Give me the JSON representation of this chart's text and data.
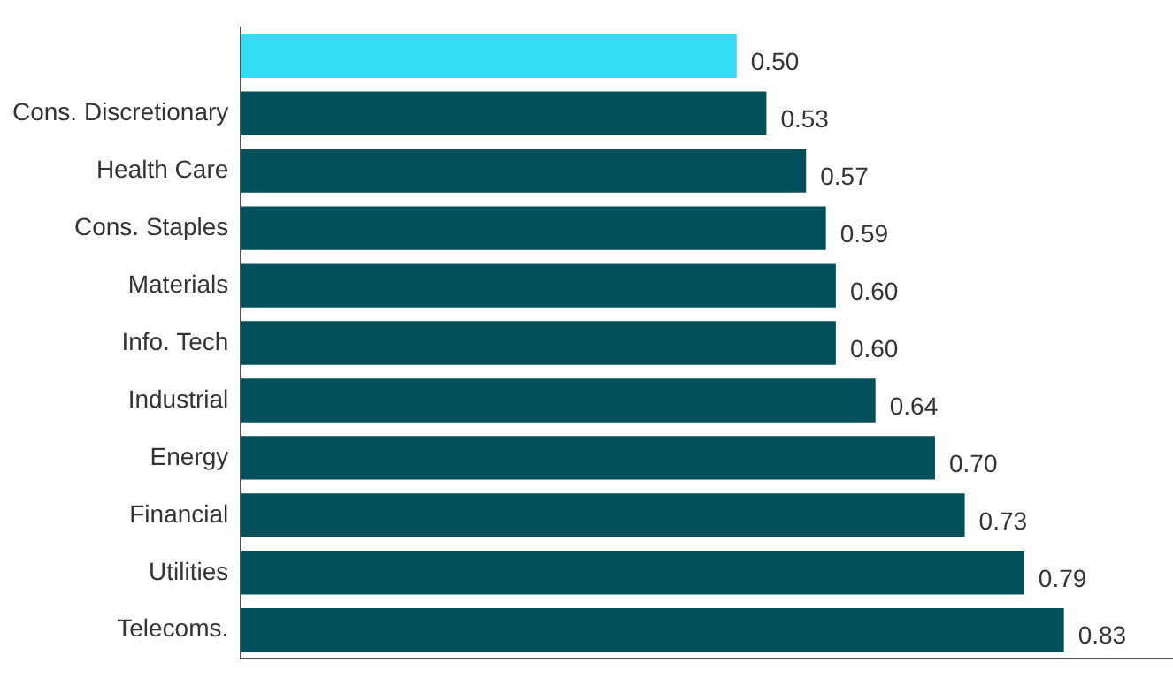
{
  "chart_data": {
    "type": "bar",
    "orientation": "horizontal",
    "categories": [
      null,
      "Cons. Discretionary",
      "Health Care",
      "Cons. Staples",
      "Materials",
      "Info. Tech",
      "Industrial",
      "Energy",
      "Financial",
      "Utilities",
      "Telecoms."
    ],
    "values": [
      0.5,
      0.53,
      0.57,
      0.59,
      0.6,
      0.6,
      0.64,
      0.7,
      0.73,
      0.79,
      0.83
    ],
    "colors": [
      "#33ddf6",
      "#00505c",
      "#00505c",
      "#00505c",
      "#00505c",
      "#00505c",
      "#00505c",
      "#00505c",
      "#00505c",
      "#00505c",
      "#00505c"
    ],
    "value_labels": [
      "0.50",
      "0.53",
      "0.57",
      "0.59",
      "0.60",
      "0.60",
      "0.64",
      "0.70",
      "0.73",
      "0.79",
      "0.83"
    ],
    "xlim": [
      0,
      0.94
    ],
    "tick_labels": "y"
  }
}
